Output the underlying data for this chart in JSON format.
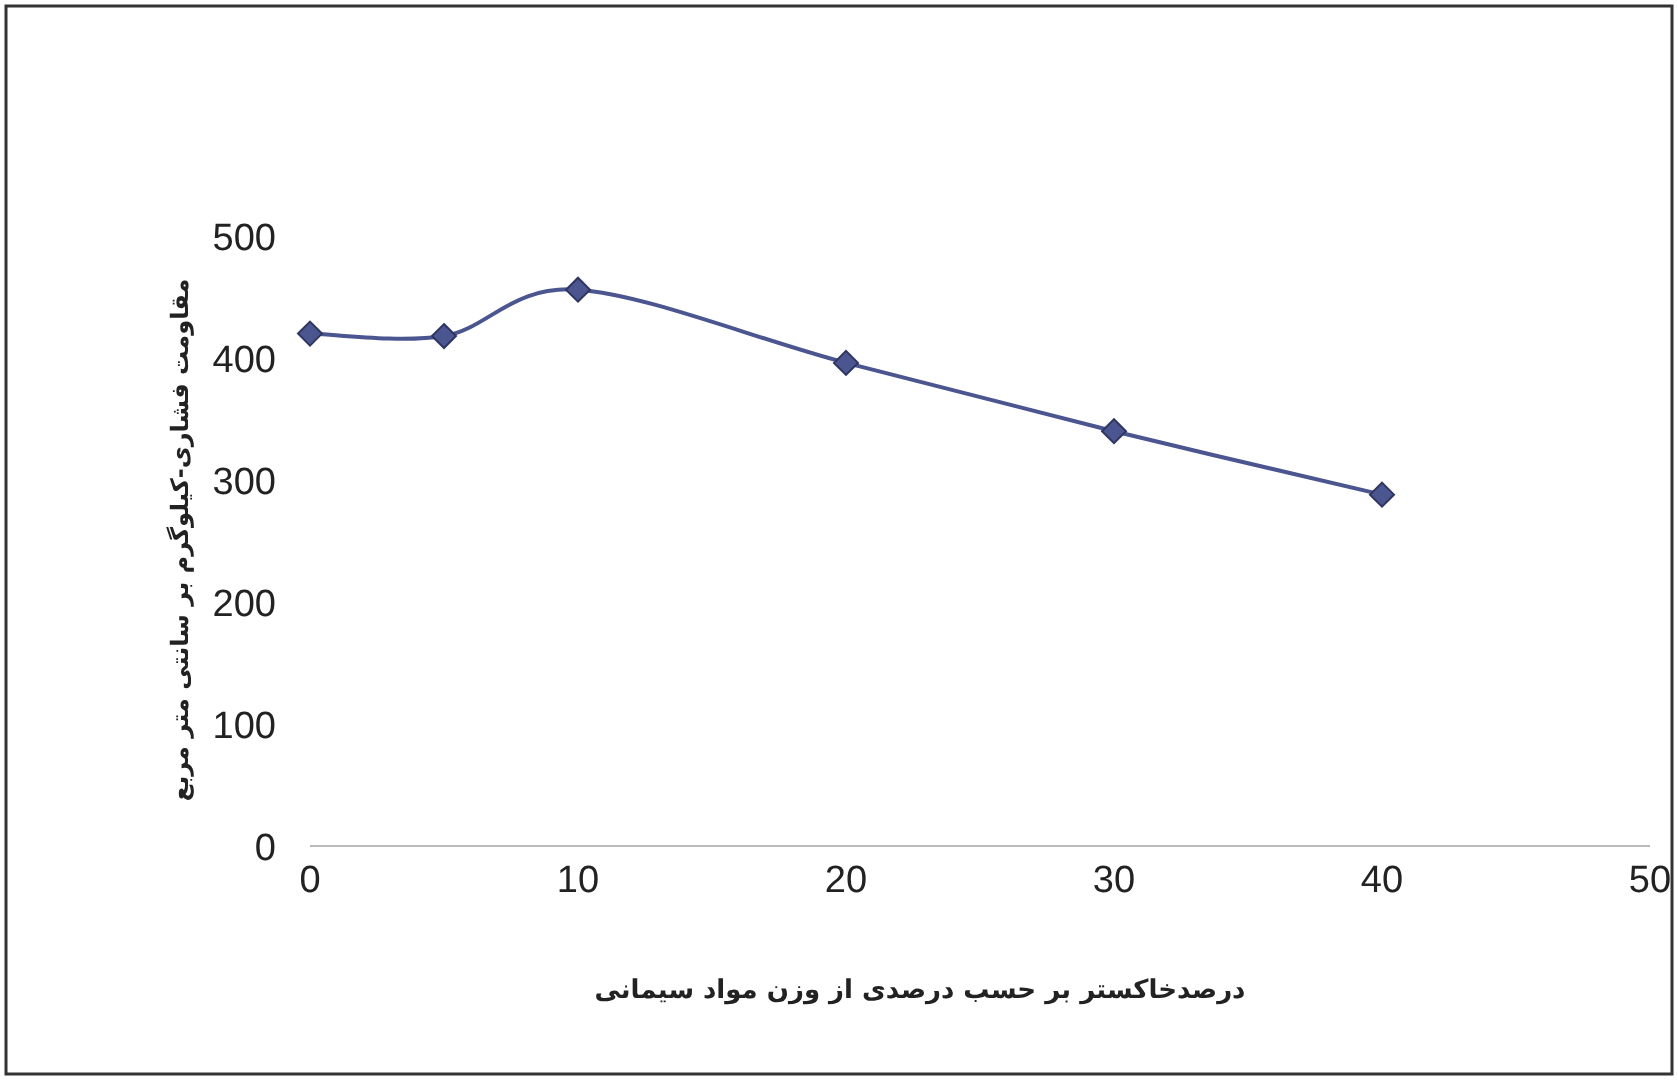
{
  "chart_data": {
    "type": "line",
    "xlabel": "درصدخاکستر  بر حسب درصدی از وزن مواد سیمانی",
    "ylabel": "مقاومت فشاری-کیلوگرم بر سانتی متر مربع",
    "x": [
      0,
      5,
      10,
      20,
      30,
      40
    ],
    "series": [
      {
        "color": "#4b5590",
        "values": [
          420,
          418,
          456,
          396,
          340,
          288
        ]
      }
    ],
    "xlim": [
      0,
      50
    ],
    "ylim": [
      0,
      500
    ],
    "xticks": [
      0,
      10,
      20,
      30,
      40,
      50
    ],
    "yticks": [
      0,
      100,
      200,
      300,
      400,
      500
    ],
    "marker": "diamond"
  }
}
